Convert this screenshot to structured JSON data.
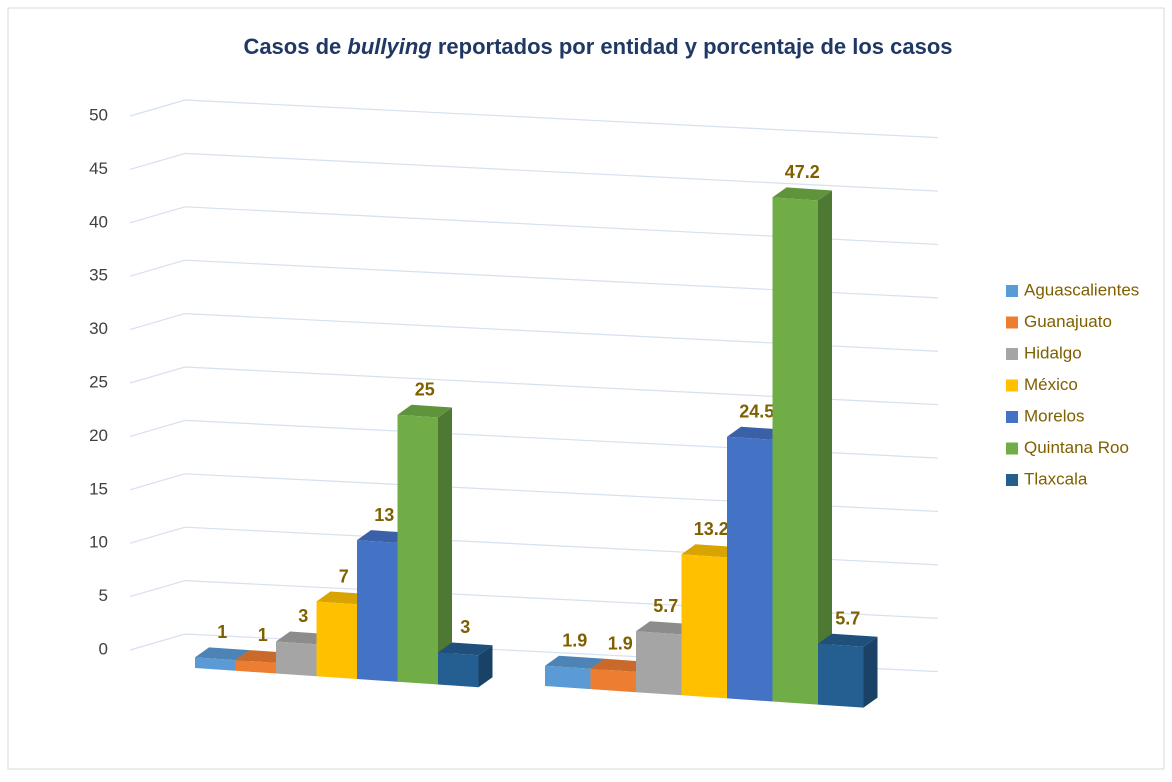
{
  "chart_data": {
    "type": "bar3d",
    "title": [
      "Casos de",
      "bullying",
      "reportados por entidad y porcentaje de los casos"
    ],
    "categories": [
      null,
      null
    ],
    "series": [
      {
        "name": "Aguascalientes",
        "color": "#5b9bd5",
        "values": [
          1,
          1.9
        ]
      },
      {
        "name": "Guanajuato",
        "color": "#ed7d31",
        "values": [
          1,
          1.9
        ]
      },
      {
        "name": "Hidalgo",
        "color": "#a5a5a5",
        "values": [
          3,
          5.7
        ]
      },
      {
        "name": "México",
        "color": "#ffc000",
        "values": [
          7,
          13.2
        ]
      },
      {
        "name": "Morelos",
        "color": "#4472c4",
        "values": [
          13,
          24.5
        ]
      },
      {
        "name": "Quintana Roo",
        "color": "#70ad47",
        "values": [
          25,
          47.2
        ]
      },
      {
        "name": "Tlaxcala",
        "color": "#255e91",
        "values": [
          3,
          5.7
        ]
      }
    ],
    "ylim": [
      0,
      50
    ],
    "yticks": [
      0,
      5,
      10,
      15,
      20,
      25,
      30,
      35,
      40,
      45,
      50
    ],
    "grid": true,
    "legend": "right"
  }
}
